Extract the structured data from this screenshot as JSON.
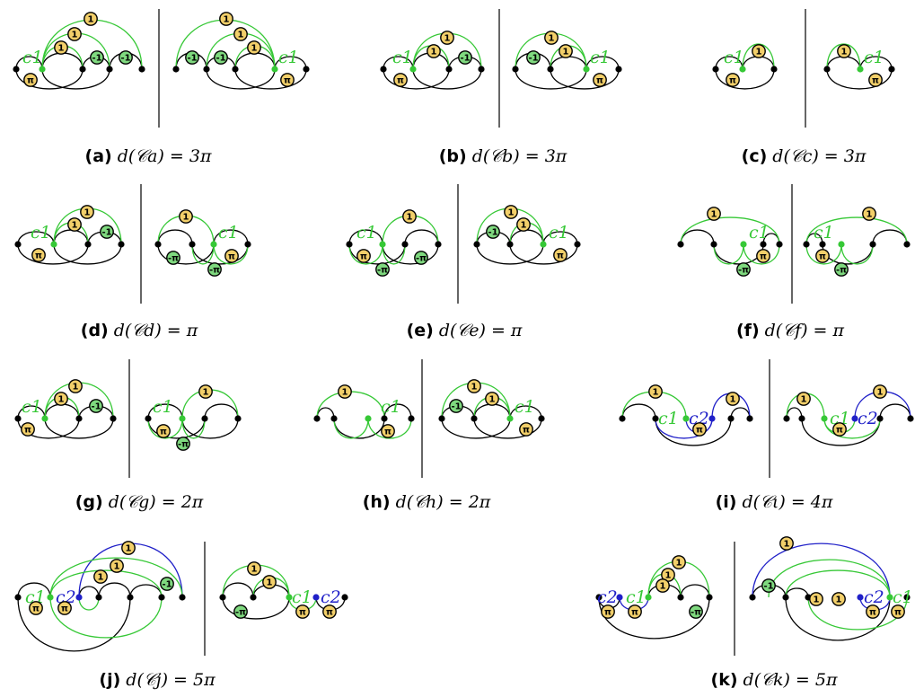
{
  "colors": {
    "black": "#000000",
    "green": "#36c836",
    "blue": "#2020c8",
    "yellow_fill": "#f2cf6a",
    "green_fill": "#7fd97f"
  },
  "icons": {
    "one_badge": "yellow circle labelled 1",
    "minus_one_badge": "green circle labelled -1",
    "pi_badge": "yellow circle labelled π",
    "minus_pi_badge": "green circle labelled -π"
  },
  "chord_labels": {
    "c1": "c1",
    "c2": "c2"
  },
  "badge_text": {
    "one": "1",
    "minus_one": "-1",
    "pi": "π",
    "minus_pi": "-π"
  },
  "panels": [
    {
      "id": "a",
      "tag": "(a)",
      "formula": "d(𝒞a) = 3π"
    },
    {
      "id": "b",
      "tag": "(b)",
      "formula": "d(𝒞b) = 3π"
    },
    {
      "id": "c",
      "tag": "(c)",
      "formula": "d(𝒞c) = 3π"
    },
    {
      "id": "d",
      "tag": "(d)",
      "formula": "d(𝒞d) = π"
    },
    {
      "id": "e",
      "tag": "(e)",
      "formula": "d(𝒞e) = π"
    },
    {
      "id": "f",
      "tag": "(f)",
      "formula": "d(𝒞f) = π"
    },
    {
      "id": "g",
      "tag": "(g)",
      "formula": "d(𝒞g) = 2π"
    },
    {
      "id": "h",
      "tag": "(h)",
      "formula": "d(𝒞h) = 2π"
    },
    {
      "id": "i",
      "tag": "(i)",
      "formula": "d(𝒞ι) = 4π"
    },
    {
      "id": "j",
      "tag": "(j)",
      "formula": "d(𝒞j) = 5π"
    },
    {
      "id": "k",
      "tag": "(k)",
      "formula": "d(𝒞k) = 5π"
    }
  ]
}
